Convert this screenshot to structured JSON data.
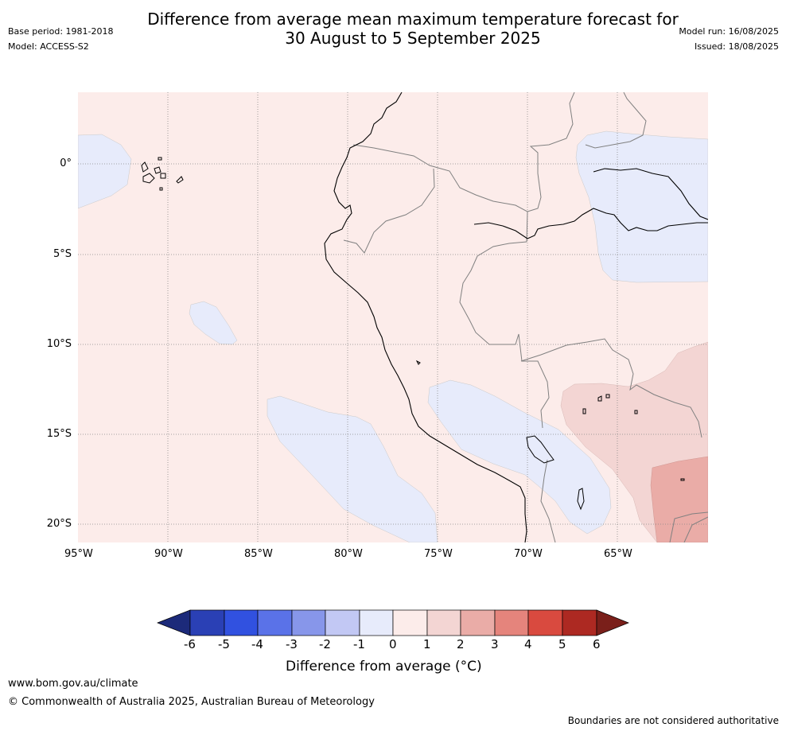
{
  "header": {
    "title_line1": "Difference from average mean maximum temperature forecast for",
    "title_line2": "30 August to 5 September 2025",
    "base_period": "Base period: 1981-2018",
    "model": "Model: ACCESS-S2",
    "model_run": "Model run: 16/08/2025",
    "issued": "Issued: 18/08/2025"
  },
  "map": {
    "lat_labels": [
      "0°",
      "5°S",
      "10°S",
      "15°S",
      "20°S"
    ],
    "lon_labels": [
      "95°W",
      "90°W",
      "85°W",
      "80°W",
      "75°W",
      "70°W",
      "65°W"
    ],
    "colors": {
      "anomaly_0_1": "#fcecea",
      "anomaly_m1_0": "#e7ebfb",
      "anomaly_1_2": "#f3d5d3",
      "anomaly_2_3": "#eaaca7",
      "coastline": "#000000",
      "borders": "#808080"
    }
  },
  "colorbar": {
    "ticks": [
      "-6",
      "-5",
      "-4",
      "-3",
      "-2",
      "-1",
      "0",
      "1",
      "2",
      "3",
      "4",
      "5",
      "6"
    ],
    "colors": [
      "#1c2a7a",
      "#2a40b5",
      "#3151e0",
      "#5a72e8",
      "#8796ea",
      "#c2c8f4",
      "#e7ebfb",
      "#fcecea",
      "#f3d5d3",
      "#eaaca7",
      "#e5847c",
      "#d94a3f",
      "#ad2922",
      "#7a1f1a"
    ],
    "label": "Difference from average (°C)"
  },
  "footer": {
    "url": "www.bom.gov.au/climate",
    "copyright": "© Commonwealth of Australia 2025, Australian Bureau of Meteorology",
    "disclaimer": "Boundaries are not considered authoritative"
  }
}
